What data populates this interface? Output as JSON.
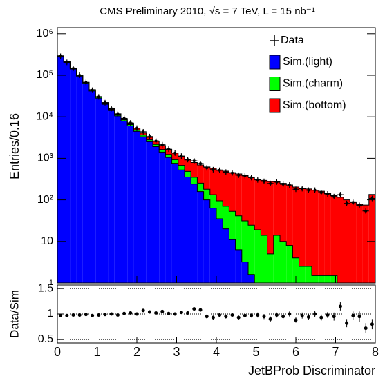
{
  "chart_data": [
    {
      "type": "histogram",
      "title": "CMS Preliminary 2010,   √s = 7 TeV,  L = 15 nb⁻¹",
      "ylabel": "Entries/0.16",
      "xlabel": "JetBProb Discriminator",
      "log_y": true,
      "legend": "top-right",
      "bins": [
        0,
        0.16,
        0.32,
        0.48,
        0.64,
        0.8,
        0.96,
        1.12,
        1.28,
        1.44,
        1.6,
        1.76,
        1.92,
        2.08,
        2.24,
        2.4,
        2.56,
        2.72,
        2.88,
        3.04,
        3.2,
        3.36,
        3.52,
        3.68,
        3.84,
        4,
        4.16,
        4.32,
        4.48,
        4.64,
        4.8,
        4.96,
        5.12,
        5.28,
        5.44,
        5.6,
        5.76,
        5.92,
        6.08,
        6.24,
        6.4,
        6.56,
        6.72,
        6.88,
        7.04,
        7.2,
        7.36,
        7.52,
        7.68,
        7.84,
        8
      ],
      "xlim": [
        0,
        8
      ],
      "xticks": [
        0,
        1,
        2,
        3,
        4,
        5,
        6,
        7,
        8
      ],
      "ylim": [
        1,
        1400000
      ],
      "yticks": [
        {
          "value": 1000000,
          "label": "10⁶"
        },
        {
          "value": 100000,
          "label": "10⁵"
        },
        {
          "value": 10000,
          "label": "10⁴"
        },
        {
          "value": 1000,
          "label": "10³"
        },
        {
          "value": 100,
          "label": "10²"
        },
        10,
        1
      ],
      "data": {
        "name": "Data",
        "color": "#000000",
        "values": [
          286000,
          204000,
          146000,
          99600,
          66900,
          43700,
          30100,
          21800,
          15700,
          11580,
          9140,
          7130,
          5320,
          4350,
          3340,
          2610,
          2120,
          1660,
          1340,
          1130,
          933,
          869,
          748,
          589,
          533,
          515,
          466,
          444,
          392,
          379,
          344,
          303,
          279,
          248,
          269,
          238,
          228,
          180,
          186,
          171,
          171,
          150,
          139,
          120,
          133,
          82,
          87,
          74,
          54,
          108
        ]
      },
      "series": [
        {
          "name": "Sim.(light)",
          "color": "#0000ff",
          "values": [
            282000,
            200000,
            141000,
            95500,
            63100,
            41700,
            28200,
            20000,
            14100,
            10500,
            7940,
            6030,
            4470,
            3310,
            2510,
            1910,
            1410,
            1050,
            759,
            525,
            355,
            240,
            158,
            100,
            63,
            35,
            20,
            11,
            6.3,
            3.2,
            1.6,
            1,
            0,
            0,
            0,
            0,
            0,
            0,
            0,
            0,
            0,
            0,
            0,
            0,
            0,
            0,
            0,
            0,
            0,
            0
          ]
        },
        {
          "name": "Sim.(charm)",
          "color": "#00ff00",
          "values": [
            10000,
            8000,
            6000,
            4500,
            3200,
            2300,
            1600,
            1200,
            900,
            700,
            550,
            450,
            380,
            320,
            280,
            250,
            220,
            190,
            170,
            150,
            130,
            110,
            95,
            80,
            70,
            60,
            50,
            42,
            35,
            28,
            23,
            18,
            14,
            5,
            14,
            10,
            8,
            4,
            2.5,
            2.5,
            1.5,
            1.5,
            1.5,
            1.5,
            0.5,
            0,
            0,
            0,
            0,
            0
          ]
        },
        {
          "name": "Sim.(bottom)",
          "color": "#ff0000",
          "values": [
            3000,
            2500,
            2000,
            1600,
            1300,
            1100,
            900,
            800,
            700,
            620,
            560,
            510,
            470,
            440,
            420,
            400,
            390,
            400,
            410,
            420,
            430,
            440,
            440,
            440,
            440,
            430,
            420,
            400,
            380,
            360,
            330,
            290,
            280,
            270,
            260,
            240,
            220,
            200,
            190,
            180,
            170,
            160,
            140,
            125,
            115,
            100,
            90,
            78,
            75,
            135
          ]
        }
      ]
    },
    {
      "type": "errorbar",
      "ylabel": "Data/Sim",
      "ylim": [
        0.43,
        1.57
      ],
      "yticks": [
        0.5,
        1,
        1.5
      ],
      "grid": true,
      "values": [
        0.97,
        0.97,
        0.98,
        0.98,
        0.99,
        0.97,
        0.98,
        0.99,
        1.0,
        0.98,
        1.01,
        1.02,
        1.0,
        1.07,
        1.04,
        1.02,
        1.05,
        1.01,
        1.0,
        1.03,
        1.02,
        1.1,
        1.08,
        0.95,
        0.93,
        0.98,
        0.95,
        0.98,
        0.93,
        0.97,
        0.97,
        0.98,
        0.95,
        0.9,
        0.98,
        0.95,
        1.0,
        0.88,
        0.97,
        0.94,
        1.0,
        0.93,
        0.98,
        0.95,
        1.15,
        0.82,
        0.97,
        0.95,
        0.72,
        0.8
      ],
      "errors": [
        0.01,
        0.01,
        0.01,
        0.01,
        0.01,
        0.01,
        0.01,
        0.01,
        0.01,
        0.01,
        0.02,
        0.02,
        0.02,
        0.02,
        0.02,
        0.02,
        0.03,
        0.03,
        0.03,
        0.03,
        0.03,
        0.03,
        0.03,
        0.04,
        0.04,
        0.04,
        0.04,
        0.04,
        0.04,
        0.04,
        0.04,
        0.05,
        0.05,
        0.05,
        0.05,
        0.05,
        0.05,
        0.05,
        0.06,
        0.06,
        0.06,
        0.06,
        0.06,
        0.08,
        0.08,
        0.08,
        0.08,
        0.1,
        0.1,
        0.1
      ]
    }
  ]
}
